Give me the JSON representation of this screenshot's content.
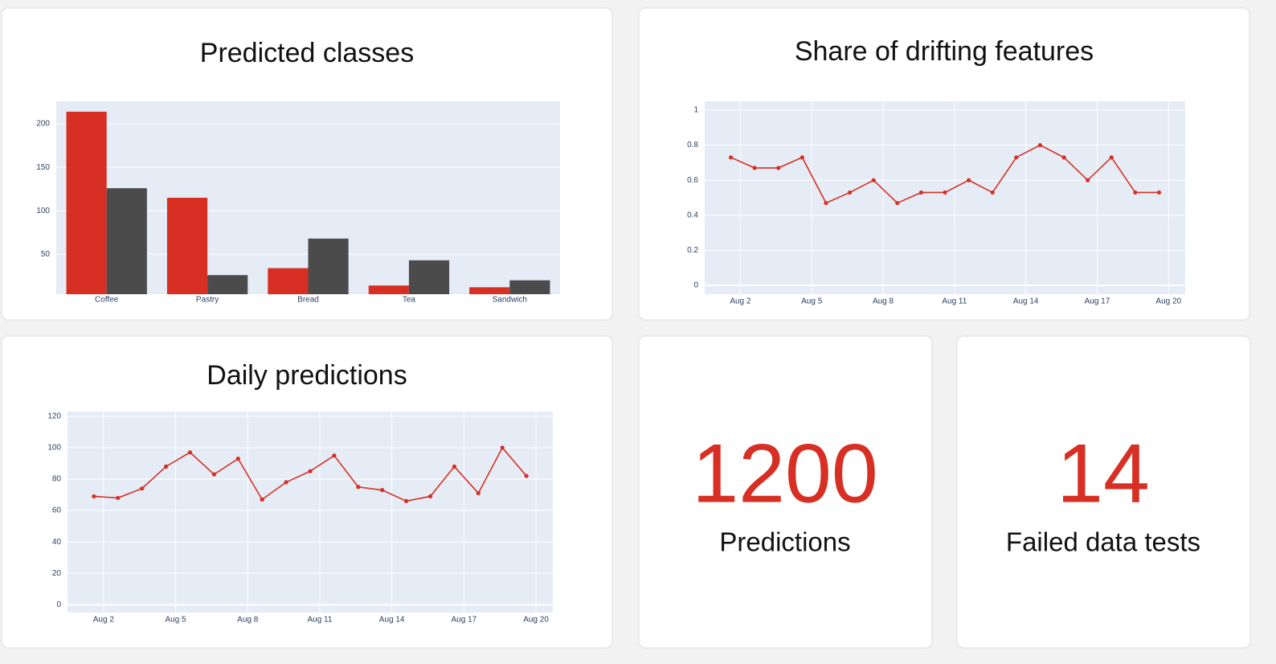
{
  "chart_data": [
    {
      "type": "bar",
      "title": "Predicted classes",
      "categories": [
        "Coffee",
        "Pastry",
        "Bread",
        "Tea",
        "Sandwich"
      ],
      "series": [
        {
          "color": "#d72f23",
          "values": [
            214,
            115,
            34,
            14,
            12
          ]
        },
        {
          "color": "#4b4b4b",
          "values": [
            126,
            26,
            68,
            43,
            20
          ]
        }
      ],
      "ylim": [
        4,
        226
      ],
      "yticks": [
        50,
        100,
        150,
        200
      ],
      "grid": true
    },
    {
      "type": "line",
      "title": "Share of drifting features",
      "x": [
        1.6,
        2.6,
        3.6,
        4.6,
        5.6,
        6.6,
        7.6,
        8.6,
        9.6,
        10.6,
        11.6,
        12.6,
        13.6,
        14.6,
        15.6,
        16.6,
        17.6,
        18.6,
        19.6
      ],
      "values": [
        0.73,
        0.67,
        0.67,
        0.73,
        0.47,
        0.53,
        0.6,
        0.47,
        0.53,
        0.53,
        0.6,
        0.53,
        0.73,
        0.8,
        0.73,
        0.6,
        0.73,
        0.53,
        0.53
      ],
      "color": "#d72f23",
      "xlim": [
        0.5,
        20.7
      ],
      "xticks": [
        {
          "value": 2,
          "label": "Aug 2"
        },
        {
          "value": 5,
          "label": "Aug 5"
        },
        {
          "value": 8,
          "label": "Aug 8"
        },
        {
          "value": 11,
          "label": "Aug 11"
        },
        {
          "value": 14,
          "label": "Aug 14"
        },
        {
          "value": 17,
          "label": "Aug 17"
        },
        {
          "value": 20,
          "label": "Aug 20"
        }
      ],
      "ylim": [
        -0.05,
        1.05
      ],
      "yticks": [
        0,
        0.2,
        0.4,
        0.6,
        0.8,
        1
      ],
      "grid": true
    },
    {
      "type": "line",
      "title": "Daily predictions",
      "x": [
        1.6,
        2.6,
        3.6,
        4.6,
        5.6,
        6.6,
        7.6,
        8.6,
        9.6,
        10.6,
        11.6,
        12.6,
        13.6,
        14.6,
        15.6,
        16.6,
        17.6,
        18.6,
        19.6
      ],
      "values": [
        69,
        68,
        74,
        88,
        97,
        83,
        93,
        67,
        78,
        85,
        95,
        75,
        73,
        66,
        69,
        88,
        71,
        100,
        82
      ],
      "color": "#d72f23",
      "xlim": [
        0.5,
        20.7
      ],
      "xticks": [
        {
          "value": 2,
          "label": "Aug 2"
        },
        {
          "value": 5,
          "label": "Aug 5"
        },
        {
          "value": 8,
          "label": "Aug 8"
        },
        {
          "value": 11,
          "label": "Aug 11"
        },
        {
          "value": 14,
          "label": "Aug 14"
        },
        {
          "value": 17,
          "label": "Aug 17"
        },
        {
          "value": 20,
          "label": "Aug 20"
        }
      ],
      "ylim": [
        -5,
        123
      ],
      "yticks": [
        0,
        20,
        40,
        60,
        80,
        100,
        120
      ],
      "grid": true
    }
  ],
  "counters": [
    {
      "value": 1200,
      "label": "Predictions",
      "color": "#d72f23"
    },
    {
      "value": 14,
      "label": "Failed data tests",
      "color": "#d72f23"
    }
  ]
}
